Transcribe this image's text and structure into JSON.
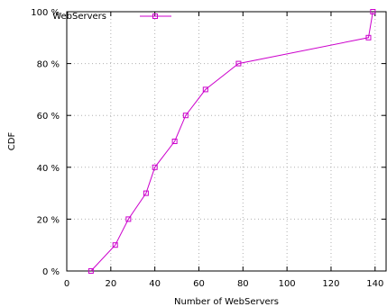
{
  "chart_data": {
    "type": "line",
    "xlabel": "Number of WebServers",
    "ylabel": "CDF",
    "xlim": [
      0,
      145
    ],
    "ylim": [
      0,
      100
    ],
    "xticks": [
      0,
      20,
      40,
      60,
      80,
      100,
      120,
      140
    ],
    "yticks": [
      0,
      20,
      40,
      60,
      80,
      100
    ],
    "xtick_labels": [
      "0",
      "20",
      "40",
      "60",
      "80",
      "100",
      "120",
      "140"
    ],
    "ytick_labels": [
      "0 %",
      "20 %",
      "40 %",
      "60 %",
      "80 %",
      "100 %"
    ],
    "grid": true,
    "legend_position": "top-left",
    "series": [
      {
        "name": "WebServers",
        "color": "#cc00cc",
        "marker": "square",
        "x": [
          11,
          22,
          28,
          36,
          40,
          49,
          54,
          63,
          78,
          137,
          139
        ],
        "y": [
          0,
          10,
          20,
          30,
          40,
          50,
          60,
          70,
          80,
          90,
          100
        ]
      }
    ]
  }
}
